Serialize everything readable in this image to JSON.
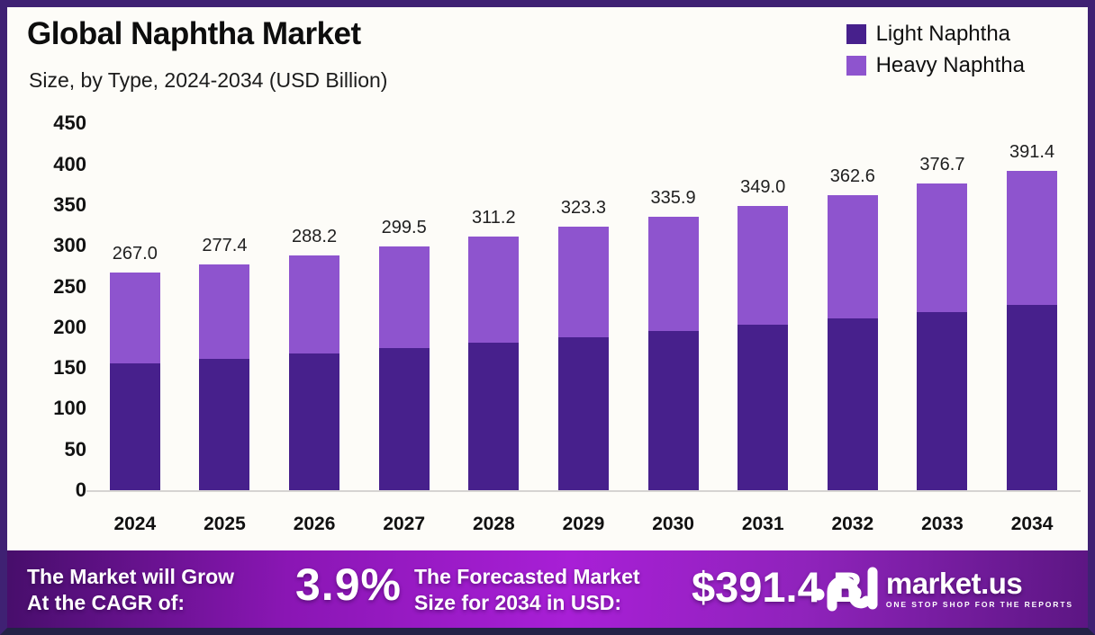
{
  "meta": {
    "title": "Global Naphtha Market",
    "subtitle": "Size, by Type, 2024-2034 (USD Billion)"
  },
  "colors": {
    "light_naphtha": "#47208C",
    "heavy_naphtha": "#8E54CE",
    "frame_border": "#3f2173",
    "bottom_border": "#232246",
    "banner_gradient_mid": "#a81fd6",
    "axis_line": "#d6d4d2"
  },
  "legend": [
    {
      "label": "Light Naphtha",
      "color": "#47208C"
    },
    {
      "label": "Heavy Naphtha",
      "color": "#8E54CE"
    }
  ],
  "chart_data": {
    "type": "bar",
    "stacked": true,
    "title": "Global Naphtha Market",
    "subtitle": "Size, by Type, 2024-2034 (USD Billion)",
    "xlabel": "",
    "ylabel": "USD Billion",
    "categories": [
      "2024",
      "2025",
      "2026",
      "2027",
      "2028",
      "2029",
      "2030",
      "2031",
      "2032",
      "2033",
      "2034"
    ],
    "series": [
      {
        "name": "Light Naphtha",
        "color": "#47208C",
        "values": [
          155.1,
          161.2,
          167.4,
          174.0,
          180.8,
          187.8,
          195.2,
          202.8,
          210.7,
          218.9,
          227.4
        ]
      },
      {
        "name": "Heavy Naphtha",
        "color": "#8E54CE",
        "values": [
          111.9,
          116.2,
          120.8,
          125.5,
          130.4,
          135.5,
          140.7,
          146.2,
          151.9,
          157.8,
          164.0
        ]
      }
    ],
    "totals": [
      "267.0",
      "277.4",
      "288.2",
      "299.5",
      "311.2",
      "323.3",
      "335.9",
      "349.0",
      "362.6",
      "376.7",
      "391.4"
    ],
    "y_ticks": [
      0,
      50,
      100,
      150,
      200,
      250,
      300,
      350,
      400,
      450
    ],
    "ylim": [
      0,
      450
    ],
    "grid": false,
    "legend_position": "top-right"
  },
  "banner": {
    "grow_line1": "The Market will Grow",
    "grow_line2": "At the CAGR of:",
    "cagr_value": "3.9%",
    "forecast_line1": "The Forecasted Market",
    "forecast_line2": "Size for 2034 in USD:",
    "forecast_value": "$391.4 B",
    "brand_name": "market.us",
    "brand_tagline": "ONE STOP SHOP FOR THE REPORTS"
  }
}
